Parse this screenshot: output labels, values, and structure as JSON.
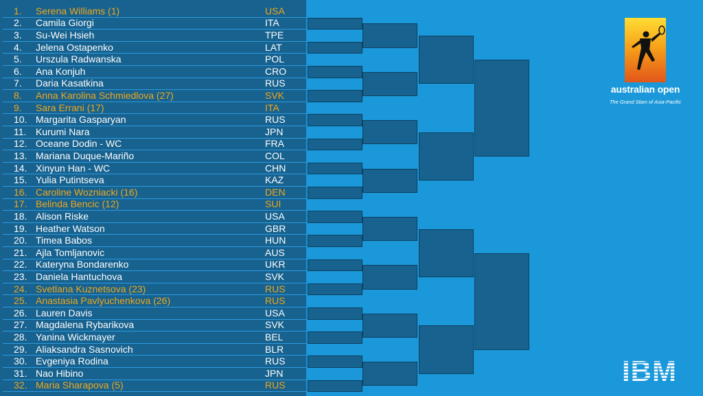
{
  "draw": {
    "players": [
      {
        "num": "1.",
        "name": "Serena Williams (1)",
        "country": "USA",
        "seeded": true
      },
      {
        "num": "2.",
        "name": "Camila Giorgi",
        "country": "ITA",
        "seeded": false
      },
      {
        "num": "3.",
        "name": "Su-Wei Hsieh",
        "country": "TPE",
        "seeded": false
      },
      {
        "num": "4.",
        "name": "Jelena Ostapenko",
        "country": "LAT",
        "seeded": false
      },
      {
        "num": "5.",
        "name": "Urszula Radwanska",
        "country": "POL",
        "seeded": false
      },
      {
        "num": "6.",
        "name": "Ana Konjuh",
        "country": "CRO",
        "seeded": false
      },
      {
        "num": "7.",
        "name": "Daria Kasatkina",
        "country": "RUS",
        "seeded": false
      },
      {
        "num": "8.",
        "name": "Anna Karolina Schmiedlova (27)",
        "country": "SVK",
        "seeded": true
      },
      {
        "num": "9.",
        "name": "Sara Errani (17)",
        "country": "ITA",
        "seeded": true
      },
      {
        "num": "10.",
        "name": "Margarita Gasparyan",
        "country": "RUS",
        "seeded": false
      },
      {
        "num": "11.",
        "name": "Kurumi Nara",
        "country": "JPN",
        "seeded": false
      },
      {
        "num": "12.",
        "name": "Oceane Dodin - WC",
        "country": "FRA",
        "seeded": false
      },
      {
        "num": "13.",
        "name": "Mariana Duque-Mariño",
        "country": "COL",
        "seeded": false
      },
      {
        "num": "14.",
        "name": "Xinyun Han - WC",
        "country": "CHN",
        "seeded": false
      },
      {
        "num": "15.",
        "name": "Yulia Putintseva",
        "country": "KAZ",
        "seeded": false
      },
      {
        "num": "16.",
        "name": "Caroline Wozniacki (16)",
        "country": "DEN",
        "seeded": true
      },
      {
        "num": "17.",
        "name": "Belinda Bencic (12)",
        "country": "SUI",
        "seeded": true
      },
      {
        "num": "18.",
        "name": "Alison Riske",
        "country": "USA",
        "seeded": false
      },
      {
        "num": "19.",
        "name": "Heather Watson",
        "country": "GBR",
        "seeded": false
      },
      {
        "num": "20.",
        "name": "Timea Babos",
        "country": "HUN",
        "seeded": false
      },
      {
        "num": "21.",
        "name": "Ajla Tomljanovic",
        "country": "AUS",
        "seeded": false
      },
      {
        "num": "22.",
        "name": "Kateryna Bondarenko",
        "country": "UKR",
        "seeded": false
      },
      {
        "num": "23.",
        "name": "Daniela Hantuchova",
        "country": "SVK",
        "seeded": false
      },
      {
        "num": "24.",
        "name": "Svetlana Kuznetsova (23)",
        "country": "RUS",
        "seeded": true
      },
      {
        "num": "25.",
        "name": "Anastasia Pavlyuchenkova (26)",
        "country": "RUS",
        "seeded": true
      },
      {
        "num": "26.",
        "name": "Lauren Davis",
        "country": "USA",
        "seeded": false
      },
      {
        "num": "27.",
        "name": "Magdalena Rybarikova",
        "country": "SVK",
        "seeded": false
      },
      {
        "num": "28.",
        "name": "Yanina Wickmayer",
        "country": "BEL",
        "seeded": false
      },
      {
        "num": "29.",
        "name": "Aliaksandra Sasnovich",
        "country": "BLR",
        "seeded": false
      },
      {
        "num": "30.",
        "name": "Evgeniya Rodina",
        "country": "RUS",
        "seeded": false
      },
      {
        "num": "31.",
        "name": "Nao Hibino",
        "country": "JPN",
        "seeded": false
      },
      {
        "num": "32.",
        "name": "Maria Sharapova (5)",
        "country": "RUS",
        "seeded": true
      }
    ]
  },
  "branding": {
    "ao_wordmark": "australian open",
    "ao_tagline": "The Grand Slam of Asia-Pacific",
    "ibm_logo": "IBM"
  },
  "colors": {
    "background": "#1b98d9",
    "panel": "#17628f",
    "seed_text": "#f0a81c",
    "text": "#ffffff"
  }
}
